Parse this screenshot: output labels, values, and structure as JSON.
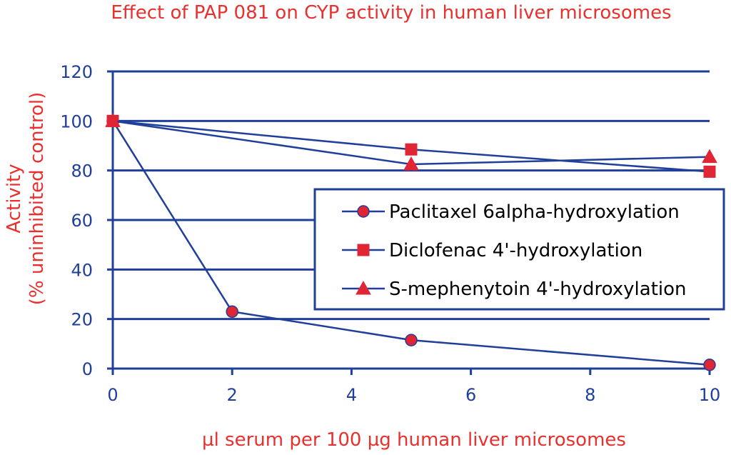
{
  "chart_data": {
    "type": "line",
    "title": "Effect of PAP 081 on CYP activity in human liver microsomes",
    "xlabel": "µl serum per 100 µg human liver microsomes",
    "ylabel": [
      "Activity",
      "(% uninhibited control)"
    ],
    "xlim": [
      0,
      10
    ],
    "ylim": [
      0,
      120
    ],
    "xticks": [
      "0",
      "2",
      "4",
      "6",
      "8",
      "10"
    ],
    "yticks": [
      "0",
      "20",
      "40",
      "60",
      "80",
      "100",
      "120"
    ],
    "grid": "horizontal",
    "legend_position": "right",
    "series": [
      {
        "name": "Paclitaxel 6alpha-hydroxylation",
        "marker": "circle",
        "x": [
          0,
          2,
          5,
          10
        ],
        "y": [
          100,
          23,
          11.5,
          1.5
        ]
      },
      {
        "name": "Diclofenac 4'-hydroxylation",
        "marker": "square",
        "x": [
          0,
          5,
          10
        ],
        "y": [
          100,
          88.5,
          79.5
        ]
      },
      {
        "name": "S-mephenytoin 4'-hydroxylation",
        "marker": "triangle",
        "x": [
          0,
          5,
          10
        ],
        "y": [
          100,
          82.5,
          85.5
        ]
      }
    ]
  },
  "colors": {
    "text_accent": "#e8312f",
    "axis": "#1f3f9a",
    "marker_fill": "#e02535",
    "marker_stroke": "#e02535"
  }
}
